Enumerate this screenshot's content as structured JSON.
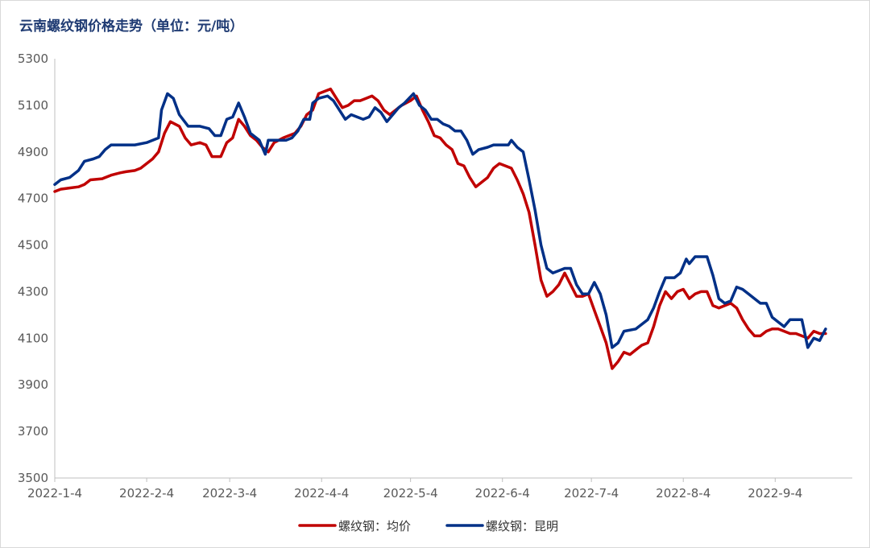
{
  "chart_data": {
    "type": "line",
    "title": "云南螺纹钢价格走势（单位：元/吨）",
    "ylim": [
      3500,
      5300
    ],
    "y_ticks": [
      3500,
      3700,
      3900,
      4100,
      4300,
      4500,
      4700,
      4900,
      5100,
      5300
    ],
    "x_ticks": [
      "2022-1-4",
      "2022-2-4",
      "2022-3-4",
      "2022-4-4",
      "2022-5-4",
      "2022-6-4",
      "2022-7-4",
      "2022-8-4",
      "2022-9-4"
    ],
    "x_range": [
      "2022-01-04",
      "2022-09-30"
    ],
    "grid": false,
    "legend_position": "bottom",
    "series": [
      {
        "name": "螺纹钢：均价",
        "color": "#c00000",
        "points": [
          [
            "2022-01-04",
            4730
          ],
          [
            "2022-01-06",
            4740
          ],
          [
            "2022-01-09",
            4745
          ],
          [
            "2022-01-12",
            4750
          ],
          [
            "2022-01-14",
            4760
          ],
          [
            "2022-01-16",
            4780
          ],
          [
            "2022-01-20",
            4785
          ],
          [
            "2022-01-23",
            4800
          ],
          [
            "2022-01-26",
            4810
          ],
          [
            "2022-01-28",
            4815
          ],
          [
            "2022-01-31",
            4820
          ],
          [
            "2022-02-02",
            4830
          ],
          [
            "2022-02-06",
            4870
          ],
          [
            "2022-02-08",
            4900
          ],
          [
            "2022-02-10",
            4980
          ],
          [
            "2022-02-12",
            5030
          ],
          [
            "2022-02-15",
            5010
          ],
          [
            "2022-02-17",
            4960
          ],
          [
            "2022-02-19",
            4930
          ],
          [
            "2022-02-22",
            4940
          ],
          [
            "2022-02-24",
            4930
          ],
          [
            "2022-02-26",
            4880
          ],
          [
            "2022-03-01",
            4880
          ],
          [
            "2022-03-03",
            4940
          ],
          [
            "2022-03-05",
            4960
          ],
          [
            "2022-03-07",
            5040
          ],
          [
            "2022-03-09",
            5010
          ],
          [
            "2022-03-11",
            4970
          ],
          [
            "2022-03-13",
            4950
          ],
          [
            "2022-03-15",
            4920
          ],
          [
            "2022-03-17",
            4900
          ],
          [
            "2022-03-19",
            4940
          ],
          [
            "2022-03-22",
            4960
          ],
          [
            "2022-03-24",
            4970
          ],
          [
            "2022-03-26",
            4980
          ],
          [
            "2022-03-28",
            5010
          ],
          [
            "2022-03-30",
            5060
          ],
          [
            "2022-04-01",
            5080
          ],
          [
            "2022-04-03",
            5150
          ],
          [
            "2022-04-05",
            5160
          ],
          [
            "2022-04-07",
            5170
          ],
          [
            "2022-04-09",
            5130
          ],
          [
            "2022-04-11",
            5090
          ],
          [
            "2022-04-13",
            5100
          ],
          [
            "2022-04-15",
            5120
          ],
          [
            "2022-04-17",
            5120
          ],
          [
            "2022-04-19",
            5130
          ],
          [
            "2022-04-21",
            5140
          ],
          [
            "2022-04-23",
            5120
          ],
          [
            "2022-04-25",
            5080
          ],
          [
            "2022-04-27",
            5060
          ],
          [
            "2022-04-29",
            5080
          ],
          [
            "2022-05-01",
            5100
          ],
          [
            "2022-05-04",
            5120
          ],
          [
            "2022-05-06",
            5140
          ],
          [
            "2022-05-08",
            5080
          ],
          [
            "2022-05-10",
            5030
          ],
          [
            "2022-05-12",
            4970
          ],
          [
            "2022-05-14",
            4960
          ],
          [
            "2022-05-16",
            4930
          ],
          [
            "2022-05-18",
            4910
          ],
          [
            "2022-05-20",
            4850
          ],
          [
            "2022-05-22",
            4840
          ],
          [
            "2022-05-24",
            4790
          ],
          [
            "2022-05-26",
            4750
          ],
          [
            "2022-05-28",
            4770
          ],
          [
            "2022-05-30",
            4790
          ],
          [
            "2022-06-01",
            4830
          ],
          [
            "2022-06-03",
            4850
          ],
          [
            "2022-06-05",
            4840
          ],
          [
            "2022-06-07",
            4830
          ],
          [
            "2022-06-09",
            4780
          ],
          [
            "2022-06-11",
            4720
          ],
          [
            "2022-06-13",
            4640
          ],
          [
            "2022-06-15",
            4500
          ],
          [
            "2022-06-17",
            4350
          ],
          [
            "2022-06-19",
            4280
          ],
          [
            "2022-06-21",
            4300
          ],
          [
            "2022-06-23",
            4330
          ],
          [
            "2022-06-25",
            4380
          ],
          [
            "2022-06-27",
            4330
          ],
          [
            "2022-06-29",
            4280
          ],
          [
            "2022-07-01",
            4280
          ],
          [
            "2022-07-03",
            4290
          ],
          [
            "2022-07-05",
            4220
          ],
          [
            "2022-07-07",
            4150
          ],
          [
            "2022-07-09",
            4080
          ],
          [
            "2022-07-11",
            3970
          ],
          [
            "2022-07-13",
            4000
          ],
          [
            "2022-07-15",
            4040
          ],
          [
            "2022-07-17",
            4030
          ],
          [
            "2022-07-19",
            4050
          ],
          [
            "2022-07-21",
            4070
          ],
          [
            "2022-07-23",
            4080
          ],
          [
            "2022-07-25",
            4150
          ],
          [
            "2022-07-27",
            4240
          ],
          [
            "2022-07-29",
            4300
          ],
          [
            "2022-07-31",
            4270
          ],
          [
            "2022-08-02",
            4300
          ],
          [
            "2022-08-04",
            4310
          ],
          [
            "2022-08-06",
            4270
          ],
          [
            "2022-08-08",
            4290
          ],
          [
            "2022-08-10",
            4300
          ],
          [
            "2022-08-12",
            4300
          ],
          [
            "2022-08-14",
            4240
          ],
          [
            "2022-08-16",
            4230
          ],
          [
            "2022-08-18",
            4240
          ],
          [
            "2022-08-20",
            4250
          ],
          [
            "2022-08-22",
            4230
          ],
          [
            "2022-08-24",
            4180
          ],
          [
            "2022-08-26",
            4140
          ],
          [
            "2022-08-28",
            4110
          ],
          [
            "2022-08-30",
            4110
          ],
          [
            "2022-09-01",
            4130
          ],
          [
            "2022-09-03",
            4140
          ],
          [
            "2022-09-05",
            4140
          ],
          [
            "2022-09-07",
            4130
          ],
          [
            "2022-09-09",
            4120
          ],
          [
            "2022-09-11",
            4120
          ],
          [
            "2022-09-13",
            4110
          ],
          [
            "2022-09-15",
            4100
          ],
          [
            "2022-09-17",
            4130
          ],
          [
            "2022-09-19",
            4120
          ],
          [
            "2022-09-21",
            4120
          ]
        ]
      },
      {
        "name": "螺纹钢：昆明",
        "color": "#003087",
        "points": [
          [
            "2022-01-04",
            4760
          ],
          [
            "2022-01-06",
            4780
          ],
          [
            "2022-01-09",
            4790
          ],
          [
            "2022-01-12",
            4820
          ],
          [
            "2022-01-14",
            4860
          ],
          [
            "2022-01-17",
            4870
          ],
          [
            "2022-01-19",
            4880
          ],
          [
            "2022-01-21",
            4910
          ],
          [
            "2022-01-23",
            4930
          ],
          [
            "2022-01-27",
            4930
          ],
          [
            "2022-01-31",
            4930
          ],
          [
            "2022-02-04",
            4940
          ],
          [
            "2022-02-08",
            4960
          ],
          [
            "2022-02-09",
            5080
          ],
          [
            "2022-02-11",
            5150
          ],
          [
            "2022-02-13",
            5130
          ],
          [
            "2022-02-15",
            5060
          ],
          [
            "2022-02-18",
            5010
          ],
          [
            "2022-02-22",
            5010
          ],
          [
            "2022-02-25",
            5000
          ],
          [
            "2022-02-27",
            4970
          ],
          [
            "2022-03-01",
            4970
          ],
          [
            "2022-03-03",
            5040
          ],
          [
            "2022-03-05",
            5050
          ],
          [
            "2022-03-07",
            5110
          ],
          [
            "2022-03-09",
            5050
          ],
          [
            "2022-03-11",
            4980
          ],
          [
            "2022-03-14",
            4950
          ],
          [
            "2022-03-16",
            4890
          ],
          [
            "2022-03-17",
            4950
          ],
          [
            "2022-03-20",
            4950
          ],
          [
            "2022-03-23",
            4950
          ],
          [
            "2022-03-25",
            4960
          ],
          [
            "2022-03-27",
            4990
          ],
          [
            "2022-03-29",
            5040
          ],
          [
            "2022-03-31",
            5040
          ],
          [
            "2022-04-01",
            5110
          ],
          [
            "2022-04-03",
            5130
          ],
          [
            "2022-04-06",
            5140
          ],
          [
            "2022-04-08",
            5120
          ],
          [
            "2022-04-10",
            5080
          ],
          [
            "2022-04-12",
            5040
          ],
          [
            "2022-04-14",
            5060
          ],
          [
            "2022-04-16",
            5050
          ],
          [
            "2022-04-18",
            5040
          ],
          [
            "2022-04-20",
            5050
          ],
          [
            "2022-04-22",
            5090
          ],
          [
            "2022-04-24",
            5070
          ],
          [
            "2022-04-26",
            5030
          ],
          [
            "2022-04-28",
            5060
          ],
          [
            "2022-04-30",
            5090
          ],
          [
            "2022-05-02",
            5110
          ],
          [
            "2022-05-05",
            5150
          ],
          [
            "2022-05-07",
            5100
          ],
          [
            "2022-05-09",
            5080
          ],
          [
            "2022-05-11",
            5040
          ],
          [
            "2022-05-13",
            5040
          ],
          [
            "2022-05-15",
            5020
          ],
          [
            "2022-05-17",
            5010
          ],
          [
            "2022-05-19",
            4990
          ],
          [
            "2022-05-21",
            4990
          ],
          [
            "2022-05-23",
            4950
          ],
          [
            "2022-05-25",
            4890
          ],
          [
            "2022-05-27",
            4910
          ],
          [
            "2022-05-30",
            4920
          ],
          [
            "2022-06-01",
            4930
          ],
          [
            "2022-06-04",
            4930
          ],
          [
            "2022-06-06",
            4930
          ],
          [
            "2022-06-07",
            4950
          ],
          [
            "2022-06-09",
            4920
          ],
          [
            "2022-06-11",
            4900
          ],
          [
            "2022-06-13",
            4780
          ],
          [
            "2022-06-15",
            4650
          ],
          [
            "2022-06-17",
            4500
          ],
          [
            "2022-06-19",
            4400
          ],
          [
            "2022-06-21",
            4380
          ],
          [
            "2022-06-23",
            4390
          ],
          [
            "2022-06-25",
            4400
          ],
          [
            "2022-06-27",
            4400
          ],
          [
            "2022-06-29",
            4330
          ],
          [
            "2022-07-01",
            4290
          ],
          [
            "2022-07-03",
            4290
          ],
          [
            "2022-07-05",
            4340
          ],
          [
            "2022-07-07",
            4290
          ],
          [
            "2022-07-09",
            4200
          ],
          [
            "2022-07-11",
            4060
          ],
          [
            "2022-07-13",
            4080
          ],
          [
            "2022-07-15",
            4130
          ],
          [
            "2022-07-19",
            4140
          ],
          [
            "2022-07-21",
            4160
          ],
          [
            "2022-07-23",
            4180
          ],
          [
            "2022-07-25",
            4230
          ],
          [
            "2022-07-27",
            4300
          ],
          [
            "2022-07-29",
            4360
          ],
          [
            "2022-08-01",
            4360
          ],
          [
            "2022-08-03",
            4380
          ],
          [
            "2022-08-05",
            4440
          ],
          [
            "2022-08-06",
            4420
          ],
          [
            "2022-08-08",
            4450
          ],
          [
            "2022-08-10",
            4450
          ],
          [
            "2022-08-12",
            4450
          ],
          [
            "2022-08-14",
            4370
          ],
          [
            "2022-08-16",
            4270
          ],
          [
            "2022-08-18",
            4250
          ],
          [
            "2022-08-20",
            4260
          ],
          [
            "2022-08-22",
            4320
          ],
          [
            "2022-08-24",
            4310
          ],
          [
            "2022-08-26",
            4290
          ],
          [
            "2022-08-28",
            4270
          ],
          [
            "2022-08-30",
            4250
          ],
          [
            "2022-09-01",
            4250
          ],
          [
            "2022-09-03",
            4190
          ],
          [
            "2022-09-05",
            4170
          ],
          [
            "2022-09-07",
            4150
          ],
          [
            "2022-09-09",
            4180
          ],
          [
            "2022-09-11",
            4180
          ],
          [
            "2022-09-13",
            4180
          ],
          [
            "2022-09-15",
            4060
          ],
          [
            "2022-09-17",
            4100
          ],
          [
            "2022-09-19",
            4090
          ],
          [
            "2022-09-21",
            4140
          ]
        ]
      }
    ]
  }
}
